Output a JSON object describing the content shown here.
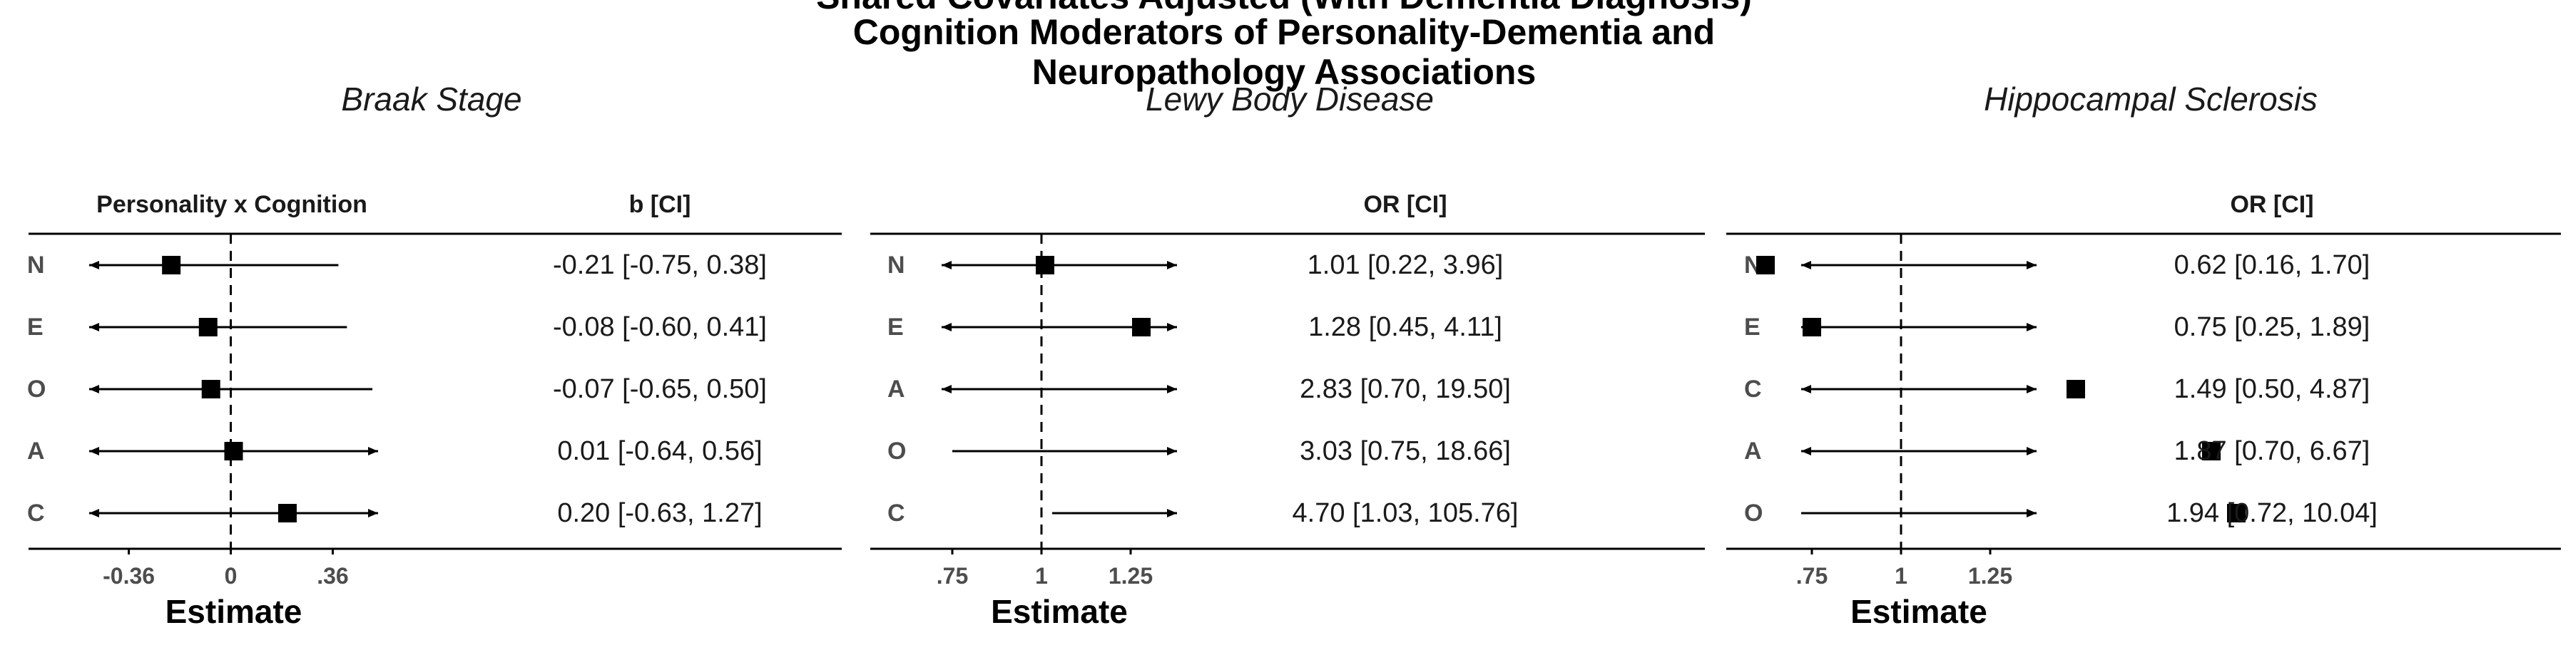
{
  "header": {
    "title_lines": [
      "Shared Covariates Adjusted (With Dementia Diagnosis)",
      "Cognition Moderators of Personality-Dementia and",
      "Neuropathology Associations"
    ]
  },
  "chart_data": [
    {
      "type": "forest",
      "title": "Braak Stage",
      "label_header": "Personality x Cognition",
      "estimate_header": "b [CI]",
      "xlabel": "Estimate",
      "xlim": [
        -0.5,
        0.52
      ],
      "reference_line": 0,
      "xticks": [
        -0.36,
        0,
        0.36
      ],
      "xtick_labels": [
        "-0.36",
        "0",
        ".36"
      ],
      "rows": [
        {
          "label": "N",
          "estimate": -0.21,
          "lower": -0.75,
          "upper": 0.38,
          "text": "-0.21 [-0.75, 0.38]"
        },
        {
          "label": "E",
          "estimate": -0.08,
          "lower": -0.6,
          "upper": 0.41,
          "text": "-0.08 [-0.60, 0.41]"
        },
        {
          "label": "O",
          "estimate": -0.07,
          "lower": -0.65,
          "upper": 0.5,
          "text": "-0.07 [-0.65, 0.50]"
        },
        {
          "label": "A",
          "estimate": 0.01,
          "lower": -0.64,
          "upper": 0.56,
          "text": "0.01 [-0.64, 0.56]"
        },
        {
          "label": "C",
          "estimate": 0.2,
          "lower": -0.63,
          "upper": 1.27,
          "text": "0.20 [-0.63, 1.27]"
        }
      ]
    },
    {
      "type": "forest",
      "title": "Lewy Body Disease",
      "label_header": "",
      "estimate_header": "OR [CI]",
      "xlabel": "Estimate",
      "xlim": [
        0.72,
        1.38
      ],
      "reference_line": 1,
      "xticks": [
        0.75,
        1,
        1.25
      ],
      "xtick_labels": [
        ".75",
        "1",
        "1.25"
      ],
      "rows": [
        {
          "label": "N",
          "estimate": 1.01,
          "lower": 0.22,
          "upper": 3.96,
          "text": "1.01 [0.22, 3.96]"
        },
        {
          "label": "E",
          "estimate": 1.28,
          "lower": 0.45,
          "upper": 4.11,
          "text": "1.28 [0.45, 4.11]"
        },
        {
          "label": "A",
          "estimate": 2.83,
          "lower": 0.7,
          "upper": 19.5,
          "text": "2.83 [0.70, 19.50]"
        },
        {
          "label": "O",
          "estimate": 3.03,
          "lower": 0.75,
          "upper": 18.66,
          "text": "3.03 [0.75, 18.66]"
        },
        {
          "label": "C",
          "estimate": 4.7,
          "lower": 1.03,
          "upper": 105.76,
          "text": "4.70 [1.03, 105.76]"
        }
      ]
    },
    {
      "type": "forest",
      "title": "Hippocampal Sclerosis",
      "label_header": "",
      "estimate_header": "OR [CI]",
      "xlabel": "Estimate",
      "xlim": [
        0.72,
        1.38
      ],
      "reference_line": 1,
      "xticks": [
        0.75,
        1,
        1.25
      ],
      "xtick_labels": [
        ".75",
        "1",
        "1.25"
      ],
      "rows": [
        {
          "label": "N",
          "estimate": 0.62,
          "lower": 0.16,
          "upper": 1.7,
          "text": "0.62 [0.16, 1.70]"
        },
        {
          "label": "E",
          "estimate": 0.75,
          "lower": 0.25,
          "upper": 1.89,
          "text": "0.75 [0.25, 1.89]"
        },
        {
          "label": "C",
          "estimate": 1.49,
          "lower": 0.5,
          "upper": 4.87,
          "text": "1.49 [0.50, 4.87]"
        },
        {
          "label": "A",
          "estimate": 1.87,
          "lower": 0.7,
          "upper": 6.67,
          "text": "1.87 [0.70, 6.67]"
        },
        {
          "label": "O",
          "estimate": 1.94,
          "lower": 0.72,
          "upper": 10.04,
          "text": "1.94 [0.72, 10.04]"
        }
      ]
    }
  ]
}
